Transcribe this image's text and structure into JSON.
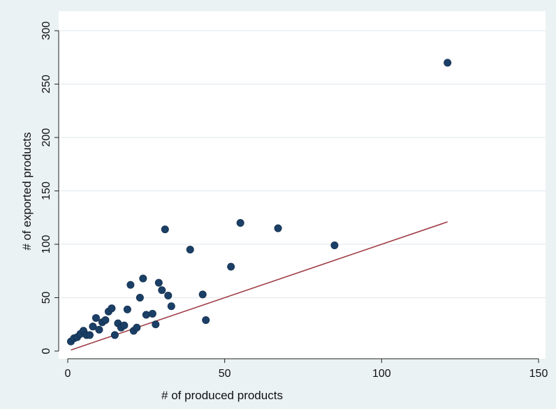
{
  "chart_data": {
    "type": "scatter",
    "title": "",
    "xlabel": "# of produced products",
    "ylabel": "# of exported products",
    "xlim": [
      0,
      150
    ],
    "ylim": [
      0,
      300
    ],
    "xticks": [
      0,
      50,
      100,
      150
    ],
    "yticks": [
      0,
      50,
      100,
      150,
      200,
      250,
      300
    ],
    "grid": "horizontal",
    "colors": {
      "background": "#eaf2f3",
      "plot_area": "#ffffff",
      "gridline": "#e6ecef",
      "marker": "#1b3f66",
      "line": "#9e3a44"
    },
    "series": [
      {
        "type": "scatter",
        "points": [
          [
            1,
            9
          ],
          [
            2,
            12
          ],
          [
            3,
            13
          ],
          [
            4,
            16
          ],
          [
            5,
            19
          ],
          [
            6,
            15
          ],
          [
            7,
            15
          ],
          [
            8,
            23
          ],
          [
            9,
            31
          ],
          [
            10,
            20
          ],
          [
            11,
            27
          ],
          [
            12,
            29
          ],
          [
            13,
            37
          ],
          [
            14,
            40
          ],
          [
            15,
            15
          ],
          [
            16,
            26
          ],
          [
            17,
            22
          ],
          [
            18,
            24
          ],
          [
            19,
            39
          ],
          [
            20,
            62
          ],
          [
            21,
            19
          ],
          [
            22,
            22
          ],
          [
            23,
            50
          ],
          [
            24,
            68
          ],
          [
            25,
            34
          ],
          [
            27,
            35
          ],
          [
            28,
            25
          ],
          [
            29,
            64
          ],
          [
            30,
            57
          ],
          [
            31,
            114
          ],
          [
            32,
            52
          ],
          [
            33,
            42
          ],
          [
            39,
            95
          ],
          [
            43,
            53
          ],
          [
            44,
            29
          ],
          [
            52,
            79
          ],
          [
            55,
            120
          ],
          [
            67,
            115
          ],
          [
            85,
            99
          ],
          [
            121,
            270
          ]
        ]
      },
      {
        "type": "line",
        "points": [
          [
            1,
            1
          ],
          [
            121,
            121
          ]
        ]
      }
    ]
  }
}
